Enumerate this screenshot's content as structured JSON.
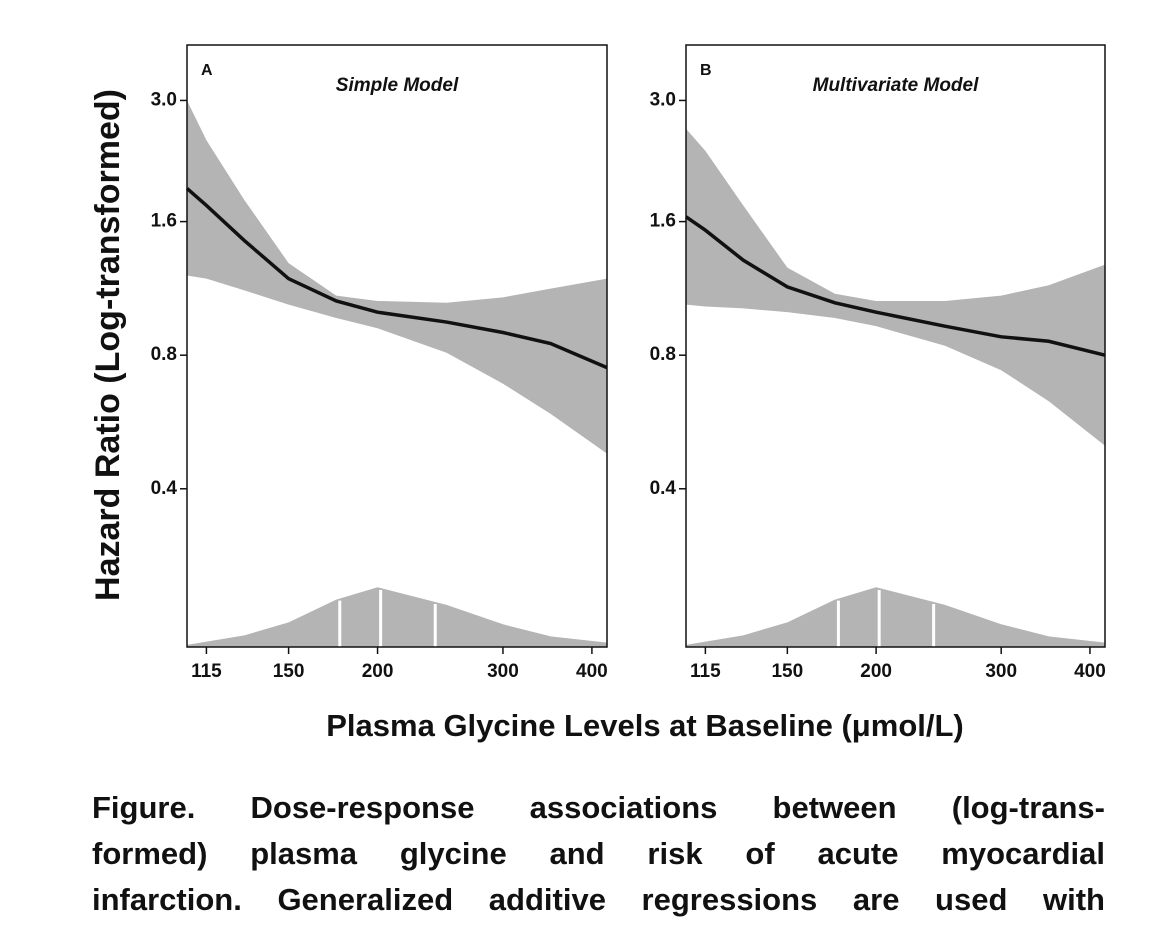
{
  "figure": {
    "y_label": "Hazard Ratio (Log-transformed)",
    "x_label": "Plasma Glycine Levels at Baseline (μmol/L)",
    "caption": [
      "Figure. Dose-response associations between (log-trans-",
      "formed) plasma glycine and risk of acute myocardial",
      "infarction. Generalized additive regressions are used with"
    ]
  },
  "chart_data": [
    {
      "type": "line",
      "panel": "A",
      "title": "Simple Model",
      "xscale": "log",
      "yscale": "log",
      "xlim": [
        108,
        420
      ],
      "ylim": [
        0.176,
        4.0
      ],
      "xticks": [
        115,
        150,
        200,
        300,
        400
      ],
      "yticks": [
        0.4,
        0.8,
        1.6,
        {
          "value": 3,
          "label": "3.0"
        }
      ],
      "x": [
        108,
        115,
        130,
        150,
        175,
        200,
        250,
        300,
        350,
        420
      ],
      "series": [
        {
          "name": "Hazard ratio",
          "color": "#111111",
          "values": [
            1.9,
            1.74,
            1.45,
            1.19,
            1.06,
            1.0,
            0.95,
            0.9,
            0.85,
            0.75
          ]
        }
      ],
      "band": {
        "color": "#b4b4b4",
        "upper": [
          3.0,
          2.44,
          1.79,
          1.29,
          1.09,
          1.06,
          1.05,
          1.08,
          1.13,
          1.19
        ],
        "lower": [
          1.21,
          1.19,
          1.12,
          1.04,
          0.97,
          0.92,
          0.81,
          0.69,
          0.59,
          0.48
        ]
      },
      "density": {
        "color": "#b4b4b4",
        "x": [
          108,
          130,
          150,
          175,
          200,
          250,
          300,
          350,
          420
        ],
        "values": [
          0.178,
          0.187,
          0.2,
          0.225,
          0.24,
          0.219,
          0.198,
          0.186,
          0.18
        ],
        "quantile_lines": [
          177,
          202,
          241
        ]
      }
    },
    {
      "type": "line",
      "panel": "B",
      "title": "Multivariate Model",
      "xscale": "log",
      "yscale": "log",
      "xlim": [
        108,
        420
      ],
      "ylim": [
        0.176,
        4.0
      ],
      "xticks": [
        115,
        150,
        200,
        300,
        400
      ],
      "yticks": [
        0.4,
        0.8,
        1.6,
        {
          "value": 3,
          "label": "3.0"
        }
      ],
      "x": [
        108,
        115,
        130,
        150,
        175,
        200,
        250,
        300,
        350,
        420
      ],
      "series": [
        {
          "name": "Hazard ratio",
          "color": "#111111",
          "values": [
            1.64,
            1.53,
            1.31,
            1.14,
            1.05,
            1.0,
            0.93,
            0.88,
            0.86,
            0.8
          ]
        }
      ],
      "band": {
        "color": "#b4b4b4",
        "upper": [
          2.59,
          2.31,
          1.74,
          1.26,
          1.1,
          1.06,
          1.06,
          1.09,
          1.15,
          1.28
        ],
        "lower": [
          1.04,
          1.03,
          1.02,
          1.0,
          0.97,
          0.93,
          0.84,
          0.74,
          0.63,
          0.5
        ]
      },
      "density": {
        "color": "#b4b4b4",
        "x": [
          108,
          130,
          150,
          175,
          200,
          250,
          300,
          350,
          420
        ],
        "values": [
          0.178,
          0.187,
          0.2,
          0.225,
          0.24,
          0.219,
          0.198,
          0.186,
          0.18
        ],
        "quantile_lines": [
          177,
          202,
          241
        ]
      }
    }
  ]
}
